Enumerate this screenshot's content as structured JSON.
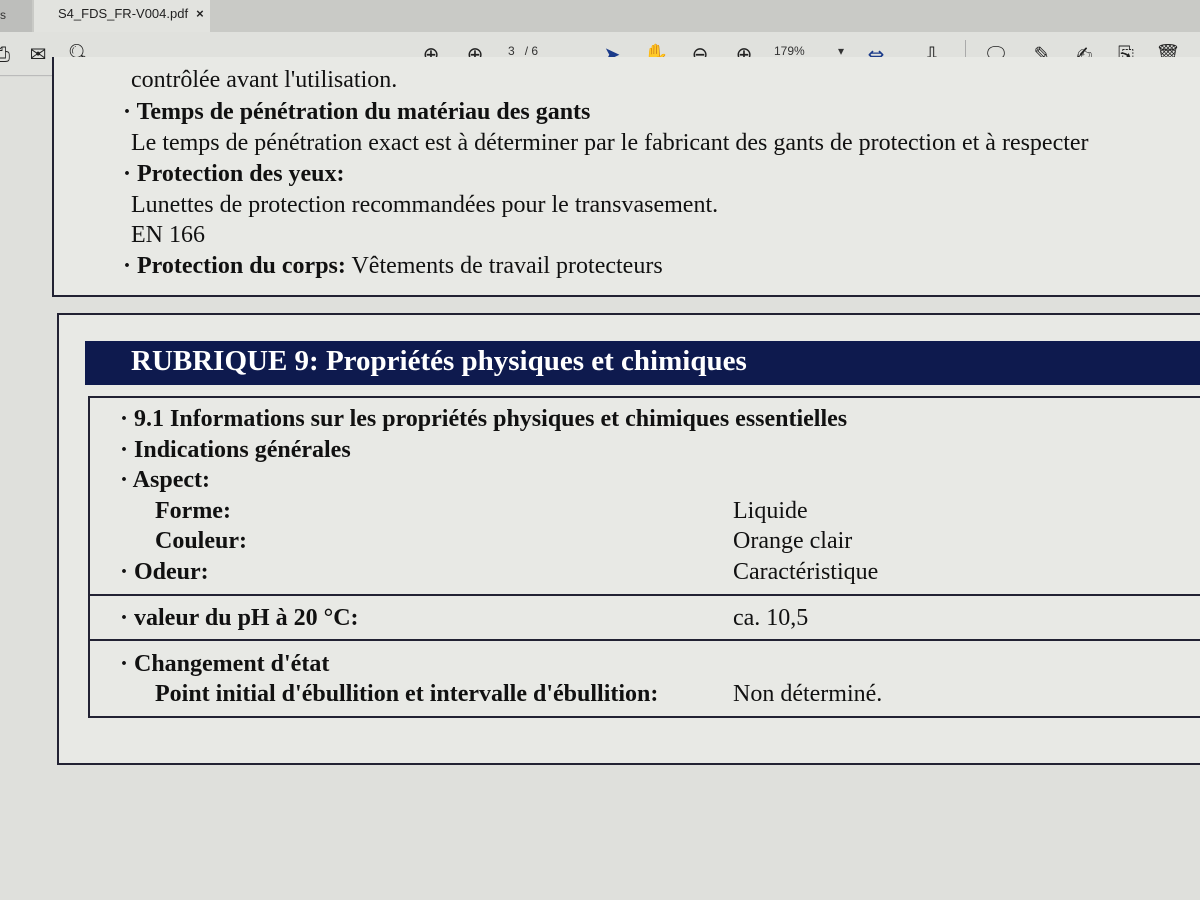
{
  "tabs": [
    {
      "label": "s"
    },
    {
      "label": "S4_FDS_FR-V004.pdf",
      "close": "×"
    }
  ],
  "toolbar": {
    "page_current": "3",
    "page_total": "/ 6",
    "zoom": "179%",
    "icons": [
      "print-icon",
      "mail-icon",
      "search-icon",
      "page-up-icon",
      "page-down-icon",
      "select-arrow-icon",
      "hand-icon",
      "zoom-out-icon",
      "zoom-in-icon",
      "fit-page-icon",
      "scroll-mode-icon",
      "comment-icon",
      "highlight-icon",
      "sign-icon",
      "export-icon",
      "trash-icon"
    ]
  },
  "doc": {
    "top": [
      {
        "text": "contrôlée avant l'utilisation.",
        "bold": false
      },
      {
        "text": "· Temps de pénétration du matériau des gants",
        "bold": true
      },
      {
        "text": "Le temps de pénétration exact est à déterminer par le fabricant des gants de protection et à respecter",
        "bold": false
      },
      {
        "text": "· Protection des yeux:",
        "bold": true
      },
      {
        "text": "Lunettes de protection recommandées pour le transvasement.",
        "bold": false
      },
      {
        "text": "EN 166",
        "bold": false
      }
    ],
    "body_protection_label": "· Protection du corps:",
    "body_protection_value": "Vêtements de travail protecteurs",
    "section_title": "RUBRIQUE 9: Propriétés physiques et chimiques",
    "s91": "· 9.1 Informations sur les propriétés physiques et chimiques essentielles",
    "general": "· Indications générales",
    "aspect": "· Aspect:",
    "forme_label": "Forme:",
    "forme_value": "Liquide",
    "couleur_label": "Couleur:",
    "couleur_value": "Orange clair",
    "odeur_label": "· Odeur:",
    "odeur_value": "Caractéristique",
    "ph_label": "· valeur du pH à 20 °C:",
    "ph_value": "ca. 10,5",
    "etat": "· Changement d'état",
    "ebull_label": "Point initial d'ébullition et intervalle d'ébullition:",
    "ebull_value": "Non déterminé."
  },
  "colors": {
    "section_header": "#0e1a4e"
  }
}
